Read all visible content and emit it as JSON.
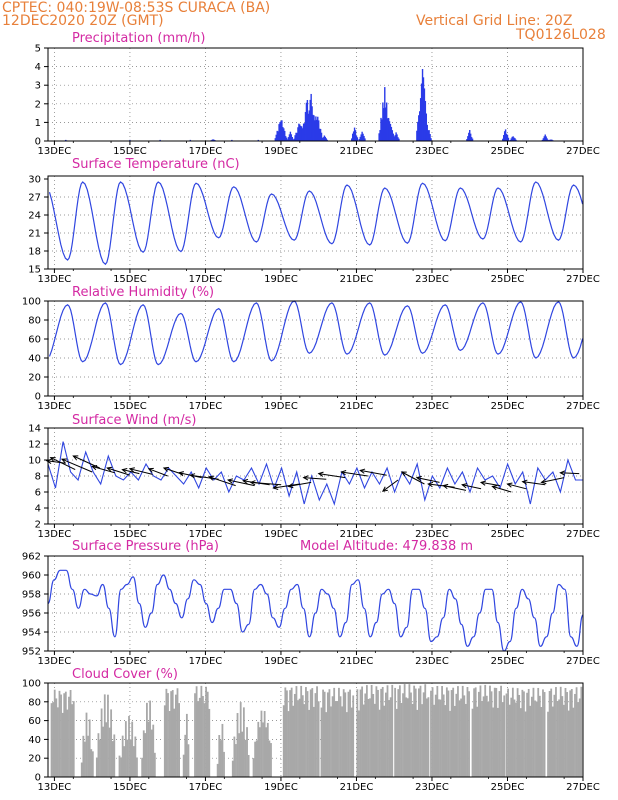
{
  "header": {
    "station": "CPTEC:   040:19W-08:53S   CURACA (BA)",
    "date": "12DEC2020 20Z (GMT)",
    "grid_line": "Vertical Grid Line: 20Z",
    "code": "TQ0126L028"
  },
  "x_ticks": [
    "13DEC",
    "15DEC",
    "17DEC",
    "19DEC",
    "21DEC",
    "23DEC",
    "25DEC",
    "27DEC"
  ],
  "colors": {
    "line": "#3046e0",
    "bar": "#2a3be8",
    "cloud": "#a8a8a8",
    "title": "#d42aa3",
    "header": "#e8803a"
  },
  "panels": {
    "precip": {
      "title": "Precipitation (mm/h)",
      "yticks": [
        "0",
        "1",
        "2",
        "3",
        "4",
        "5"
      ]
    },
    "temp": {
      "title": "Surface Temperature (nC)",
      "yticks": [
        "15",
        "18",
        "21",
        "24",
        "27",
        "30"
      ]
    },
    "rh": {
      "title": "Relative Humidity (%)",
      "yticks": [
        "0",
        "20",
        "40",
        "60",
        "80",
        "100"
      ]
    },
    "wind": {
      "title": "Surface Wind (m/s)",
      "yticks": [
        "2",
        "4",
        "6",
        "8",
        "10",
        "12",
        "14"
      ]
    },
    "pres": {
      "title": "Surface Pressure (hPa)",
      "model_altitude": "Model Altitude: 479.838 m",
      "yticks": [
        "952",
        "954",
        "956",
        "958",
        "960",
        "962"
      ]
    },
    "cloud": {
      "title": "Cloud Cover (%)",
      "yticks": [
        "0",
        "20",
        "40",
        "60",
        "80",
        "100"
      ]
    }
  },
  "chart_data": [
    {
      "type": "bar",
      "title": "Precipitation (mm/h)",
      "ylim": [
        0,
        5
      ],
      "x_range_days": [
        12.83,
        27.0
      ],
      "events": [
        [
          13.3,
          0.05
        ],
        [
          17.2,
          0.1
        ],
        [
          19.0,
          1.3
        ],
        [
          19.25,
          0.5
        ],
        [
          19.5,
          1.1
        ],
        [
          19.7,
          2.4
        ],
        [
          19.8,
          2.6
        ],
        [
          19.95,
          1.6
        ],
        [
          20.15,
          0.3
        ],
        [
          20.95,
          0.8
        ],
        [
          21.15,
          0.6
        ],
        [
          21.75,
          2.9
        ],
        [
          21.85,
          1.5
        ],
        [
          22.05,
          0.5
        ],
        [
          22.75,
          4.0
        ],
        [
          22.9,
          0.8
        ],
        [
          24.0,
          0.6
        ],
        [
          24.95,
          0.7
        ],
        [
          25.15,
          0.3
        ],
        [
          26.0,
          0.35
        ],
        [
          26.15,
          0.1
        ]
      ]
    },
    {
      "type": "line",
      "title": "Surface Temperature (nC)",
      "ylim": [
        15,
        30.5
      ],
      "x_range_days": [
        12.83,
        27.0
      ],
      "mins": [
        16.5,
        15.8,
        17.8,
        17.9,
        20.2,
        19.5,
        19.8,
        19.2,
        19.0,
        19.3,
        19.7,
        20.0,
        19.5,
        19.8
      ],
      "maxs": [
        29.0,
        29.5,
        29.5,
        29.5,
        29.3,
        28.7,
        27.5,
        28.0,
        29.0,
        28.5,
        29.3,
        28.5,
        28.5,
        29.5,
        29.0
      ]
    },
    {
      "type": "line",
      "title": "Relative Humidity (%)",
      "ylim": [
        0,
        100
      ],
      "x_range_days": [
        12.83,
        27.0
      ],
      "mins": [
        36,
        33,
        33,
        36,
        36,
        37,
        45,
        44,
        43,
        45,
        48,
        44,
        40,
        40,
        42
      ],
      "maxs": [
        100,
        96,
        98,
        96,
        87,
        92,
        98,
        100,
        98,
        98,
        95,
        96,
        98,
        99
      ]
    },
    {
      "type": "line",
      "title": "Surface Wind (m/s)",
      "ylim": [
        2,
        14
      ],
      "x_range_days": [
        12.83,
        27.0
      ],
      "values": [
        9.5,
        6.5,
        12.3,
        8.5,
        7.5,
        11.0,
        8.5,
        7.0,
        10.5,
        8.0,
        7.5,
        8.5,
        7.5,
        9.5,
        8.0,
        7.5,
        9.0,
        8.0,
        7.0,
        8.5,
        6.5,
        9.0,
        7.5,
        8.5,
        6.0,
        8.0,
        7.5,
        9.0,
        7.0,
        9.5,
        6.5,
        9.0,
        5.5,
        8.5,
        4.5,
        8.0,
        5.0,
        7.0,
        4.5,
        8.5,
        7.0,
        9.0,
        6.5,
        8.5,
        7.0,
        9.0,
        6.0,
        8.5,
        7.0,
        9.5,
        5.0,
        8.0,
        6.5,
        9.0,
        7.0,
        8.5,
        6.0,
        9.0,
        7.5,
        8.0,
        6.5,
        9.5,
        7.0,
        8.5,
        4.5,
        9.0,
        7.5,
        8.5,
        6.0,
        10.0,
        7.5,
        7.5
      ]
    },
    {
      "type": "line",
      "title": "Surface Pressure (hPa)",
      "ylim": [
        952,
        962
      ],
      "x_range_days": [
        12.83,
        27.0
      ],
      "values": [
        957.0,
        959.5,
        960.5,
        960.5,
        958.5,
        956.5,
        958.5,
        958.0,
        957.8,
        959.0,
        956.5,
        953.5,
        958.5,
        959.0,
        959.8,
        957.0,
        954.5,
        956.0,
        959.0,
        960.0,
        958.5,
        957.0,
        955.5,
        957.5,
        959.5,
        959.0,
        957.0,
        955.0,
        956.5,
        958.5,
        958.5,
        957.0,
        954.0,
        954.8,
        958.5,
        959.0,
        958.0,
        955.5,
        954.5,
        956.5,
        958.5,
        959.0,
        956.5,
        953.5,
        956.0,
        958.5,
        958.0,
        956.5,
        953.5,
        955.0,
        959.0,
        959.5,
        956.5,
        953.5,
        955.0,
        958.0,
        958.5,
        957.0,
        953.5,
        954.5,
        958.5,
        958.5,
        956.5,
        953.0,
        953.5,
        955.5,
        958.5,
        957.5,
        954.8,
        952.5,
        953.5,
        956.0,
        958.5,
        958.5,
        955.0,
        952.0,
        953.0,
        956.5,
        958.5,
        957.5,
        955.5,
        952.5,
        953.5,
        956.0,
        959.0,
        958.5,
        953.5,
        952.5,
        955.8
      ]
    },
    {
      "type": "bar",
      "title": "Cloud Cover (%)",
      "ylim": [
        0,
        100
      ],
      "x_range_days": [
        12.83,
        27.0
      ],
      "clusters": [
        [
          12.9,
          13.5,
          93
        ],
        [
          13.7,
          14.0,
          70
        ],
        [
          14.1,
          14.6,
          90
        ],
        [
          14.7,
          15.2,
          65
        ],
        [
          15.3,
          15.65,
          85
        ],
        [
          15.9,
          16.3,
          95
        ],
        [
          16.4,
          16.55,
          70
        ],
        [
          16.7,
          17.1,
          97
        ],
        [
          17.3,
          17.5,
          60
        ],
        [
          17.7,
          18.15,
          80
        ],
        [
          18.25,
          18.75,
          75
        ],
        [
          19.05,
          20.0,
          97
        ],
        [
          20.05,
          20.9,
          95
        ],
        [
          21.0,
          21.95,
          98
        ],
        [
          22.0,
          22.9,
          99
        ],
        [
          22.95,
          24.0,
          97
        ],
        [
          24.05,
          24.9,
          98
        ],
        [
          24.95,
          26.0,
          95
        ],
        [
          26.05,
          26.95,
          96
        ]
      ]
    }
  ]
}
